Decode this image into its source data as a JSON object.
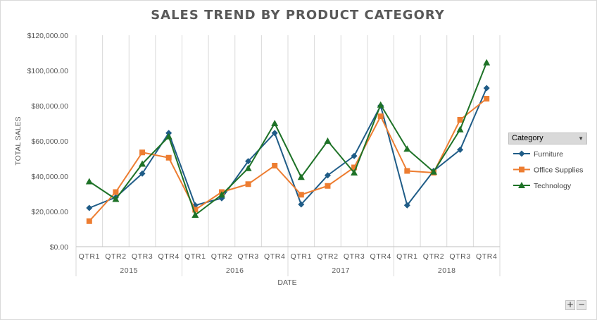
{
  "chart_data": {
    "type": "line",
    "title": "SALES TREND BY PRODUCT CATEGORY",
    "xlabel": "DATE",
    "ylabel": "TOTAL SALES",
    "ylim": [
      0,
      120000
    ],
    "yticks": [
      "$0.00",
      "$20,000.00",
      "$40,000.00",
      "$60,000.00",
      "$80,000.00",
      "$100,000.00",
      "$120,000.00"
    ],
    "quarters": [
      "QTR1",
      "QTR2",
      "QTR3",
      "QTR4",
      "QTR1",
      "QTR2",
      "QTR3",
      "QTR4",
      "QTR1",
      "QTR2",
      "QTR3",
      "QTR4",
      "QTR1",
      "QTR2",
      "QTR3",
      "QTR4"
    ],
    "years": [
      "2015",
      "2016",
      "2017",
      "2018"
    ],
    "grid": "vertical",
    "legend_title": "Category",
    "legend_position": "right",
    "series": [
      {
        "name": "Furniture",
        "color": "#1f5c87",
        "marker": "diamond",
        "values": [
          22000,
          28000,
          41500,
          64500,
          23500,
          27500,
          48500,
          64500,
          24000,
          40500,
          51500,
          80000,
          23500,
          43000,
          55000,
          90000
        ]
      },
      {
        "name": "Office Supplies",
        "color": "#ed7d31",
        "marker": "square",
        "values": [
          14500,
          31000,
          53500,
          50500,
          21000,
          31000,
          35500,
          46000,
          29500,
          34500,
          45000,
          74000,
          43000,
          42000,
          72000,
          84000
        ]
      },
      {
        "name": "Technology",
        "color": "#1e7227",
        "marker": "triangle",
        "values": [
          37000,
          27000,
          47000,
          62500,
          18000,
          29500,
          44500,
          70000,
          39500,
          60000,
          42000,
          80500,
          55500,
          42500,
          66500,
          104500
        ]
      }
    ]
  },
  "controls": {
    "zoom_in": "+",
    "zoom_out": "−"
  }
}
